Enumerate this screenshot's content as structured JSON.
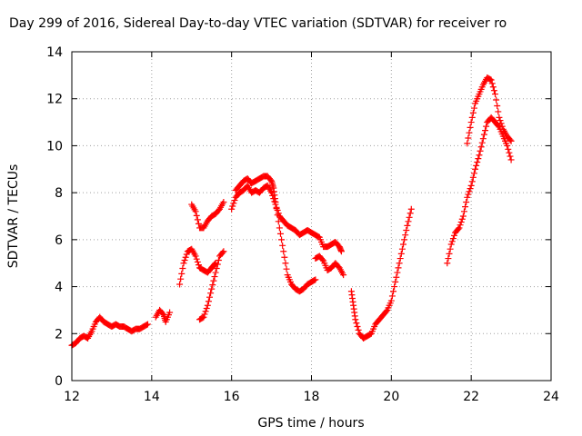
{
  "chart_data": {
    "type": "scatter",
    "title": "Day 299 of 2016, Sidereal Day-to-day VTEC variation (SDTVAR) for receiver ro",
    "xlabel": "GPS time / hours",
    "ylabel": "SDTVAR / TECUs",
    "xlim": [
      12,
      24
    ],
    "ylim": [
      0,
      14
    ],
    "xticks": [
      12,
      14,
      16,
      18,
      20,
      22,
      24
    ],
    "yticks": [
      0,
      2,
      4,
      6,
      8,
      10,
      12,
      14
    ],
    "grid": true,
    "marker": "plus",
    "color": "#ff0000",
    "series": [
      {
        "points": [
          [
            12.0,
            1.5
          ],
          [
            12.1,
            1.6
          ],
          [
            12.2,
            1.8
          ],
          [
            12.3,
            1.9
          ],
          [
            12.4,
            1.8
          ],
          [
            12.5,
            2.1
          ],
          [
            12.6,
            2.5
          ],
          [
            12.7,
            2.7
          ],
          [
            12.8,
            2.5
          ],
          [
            12.9,
            2.4
          ],
          [
            13.0,
            2.3
          ],
          [
            13.1,
            2.4
          ],
          [
            13.2,
            2.3
          ],
          [
            13.3,
            2.3
          ],
          [
            13.4,
            2.2
          ],
          [
            13.5,
            2.1
          ],
          [
            13.6,
            2.2
          ],
          [
            13.7,
            2.2
          ],
          [
            13.8,
            2.3
          ],
          [
            13.9,
            2.4
          ]
        ]
      },
      {
        "points": [
          [
            14.1,
            2.7
          ],
          [
            14.2,
            3.0
          ],
          [
            14.3,
            2.8
          ],
          [
            14.35,
            2.5
          ],
          [
            14.45,
            2.9
          ]
        ]
      },
      {
        "points": [
          [
            14.7,
            4.1
          ],
          [
            14.8,
            5.0
          ],
          [
            14.9,
            5.5
          ],
          [
            15.0,
            5.6
          ],
          [
            15.1,
            5.3
          ],
          [
            15.2,
            4.8
          ],
          [
            15.3,
            4.7
          ],
          [
            15.4,
            4.6
          ],
          [
            15.5,
            4.8
          ],
          [
            15.55,
            4.9
          ],
          [
            15.6,
            5.0
          ]
        ]
      },
      {
        "points": [
          [
            15.0,
            7.5
          ],
          [
            15.1,
            7.2
          ],
          [
            15.2,
            6.5
          ],
          [
            15.3,
            6.5
          ],
          [
            15.4,
            6.8
          ],
          [
            15.5,
            7.0
          ],
          [
            15.6,
            7.1
          ],
          [
            15.7,
            7.3
          ],
          [
            15.8,
            7.6
          ]
        ]
      },
      {
        "points": [
          [
            15.2,
            2.6
          ],
          [
            15.3,
            2.7
          ],
          [
            15.4,
            3.2
          ],
          [
            15.5,
            3.9
          ],
          [
            15.6,
            4.6
          ],
          [
            15.7,
            5.3
          ],
          [
            15.8,
            5.5
          ]
        ]
      },
      {
        "points": [
          [
            16.0,
            7.3
          ],
          [
            16.1,
            7.8
          ],
          [
            16.2,
            8.0
          ],
          [
            16.3,
            8.1
          ],
          [
            16.4,
            8.3
          ],
          [
            16.5,
            8.0
          ],
          [
            16.6,
            8.1
          ],
          [
            16.7,
            8.0
          ],
          [
            16.8,
            8.2
          ],
          [
            16.9,
            8.3
          ],
          [
            17.0,
            8.0
          ],
          [
            17.1,
            7.5
          ],
          [
            17.2,
            7.0
          ],
          [
            17.3,
            6.8
          ],
          [
            17.4,
            6.6
          ],
          [
            17.5,
            6.5
          ],
          [
            17.6,
            6.4
          ],
          [
            17.7,
            6.2
          ],
          [
            17.8,
            6.3
          ],
          [
            17.9,
            6.4
          ],
          [
            18.0,
            6.3
          ],
          [
            18.1,
            6.2
          ],
          [
            18.2,
            6.1
          ],
          [
            18.3,
            5.7
          ],
          [
            18.4,
            5.7
          ],
          [
            18.5,
            5.8
          ],
          [
            18.6,
            5.9
          ],
          [
            18.7,
            5.7
          ],
          [
            18.75,
            5.5
          ]
        ]
      },
      {
        "points": [
          [
            16.1,
            8.1
          ],
          [
            16.2,
            8.3
          ],
          [
            16.3,
            8.5
          ],
          [
            16.4,
            8.6
          ],
          [
            16.5,
            8.4
          ],
          [
            16.6,
            8.5
          ],
          [
            16.7,
            8.6
          ],
          [
            16.8,
            8.7
          ],
          [
            16.9,
            8.7
          ],
          [
            17.0,
            8.5
          ],
          [
            17.05,
            8.2
          ],
          [
            17.1,
            7.6
          ],
          [
            17.2,
            6.5
          ],
          [
            17.3,
            5.5
          ],
          [
            17.4,
            4.5
          ],
          [
            17.5,
            4.1
          ],
          [
            17.6,
            3.9
          ],
          [
            17.7,
            3.8
          ],
          [
            17.8,
            3.9
          ],
          [
            17.9,
            4.1
          ],
          [
            18.0,
            4.2
          ],
          [
            18.1,
            4.3
          ]
        ]
      },
      {
        "points": [
          [
            18.1,
            5.2
          ],
          [
            18.2,
            5.3
          ],
          [
            18.3,
            5.1
          ],
          [
            18.4,
            4.7
          ],
          [
            18.5,
            4.8
          ],
          [
            18.6,
            5.0
          ],
          [
            18.7,
            4.8
          ],
          [
            18.8,
            4.5
          ]
        ]
      },
      {
        "points": [
          [
            19.0,
            3.8
          ],
          [
            19.05,
            3.2
          ],
          [
            19.1,
            2.6
          ],
          [
            19.2,
            2.0
          ],
          [
            19.3,
            1.8
          ],
          [
            19.4,
            1.9
          ],
          [
            19.5,
            2.0
          ],
          [
            19.6,
            2.4
          ],
          [
            19.7,
            2.6
          ],
          [
            19.8,
            2.8
          ],
          [
            19.9,
            3.0
          ],
          [
            20.0,
            3.4
          ],
          [
            20.1,
            4.2
          ],
          [
            20.2,
            5.0
          ],
          [
            20.3,
            5.8
          ],
          [
            20.4,
            6.6
          ],
          [
            20.5,
            7.3
          ]
        ]
      },
      {
        "points": [
          [
            21.4,
            5.0
          ],
          [
            21.5,
            5.8
          ],
          [
            21.6,
            6.3
          ],
          [
            21.7,
            6.5
          ],
          [
            21.8,
            7.0
          ],
          [
            21.9,
            7.8
          ],
          [
            22.0,
            8.3
          ],
          [
            22.1,
            9.0
          ],
          [
            22.2,
            9.6
          ],
          [
            22.3,
            10.3
          ],
          [
            22.4,
            11.0
          ],
          [
            22.5,
            11.2
          ],
          [
            22.6,
            11.0
          ],
          [
            22.7,
            10.8
          ],
          [
            22.8,
            10.4
          ],
          [
            22.9,
            10.0
          ],
          [
            23.0,
            9.4
          ]
        ]
      },
      {
        "points": [
          [
            21.9,
            10.1
          ],
          [
            22.0,
            11.0
          ],
          [
            22.1,
            11.8
          ],
          [
            22.2,
            12.2
          ],
          [
            22.3,
            12.6
          ],
          [
            22.4,
            12.9
          ],
          [
            22.5,
            12.8
          ],
          [
            22.6,
            12.2
          ],
          [
            22.7,
            11.2
          ],
          [
            22.8,
            10.7
          ],
          [
            22.9,
            10.4
          ],
          [
            23.0,
            10.2
          ]
        ]
      }
    ]
  }
}
